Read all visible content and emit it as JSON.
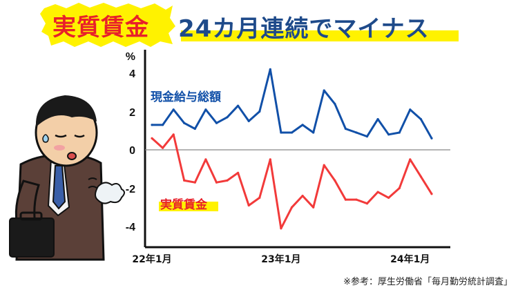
{
  "header": {
    "title_highlight": "実質賃金",
    "title_rest": "24カ月連続でマイナス"
  },
  "footer": {
    "source": "※参考：厚生労働省「毎月勤労統計調査」"
  },
  "colors": {
    "red": "#e8202a",
    "blue": "#1e4a8a",
    "nominal_line": "#1150a8",
    "real_line": "#f23a3a",
    "yellow": "#fff200"
  },
  "chart_data": {
    "type": "line",
    "ylabel": "%",
    "ylim": [
      -5,
      5
    ],
    "yticks": [
      4,
      2,
      0,
      -2,
      -4
    ],
    "x_ticks": [
      {
        "index": 0,
        "label": "22年1月"
      },
      {
        "index": 12,
        "label": "23年1月"
      },
      {
        "index": 24,
        "label": "24年1月"
      }
    ],
    "zero_line": true,
    "series": [
      {
        "name": "現金給与総額",
        "color_key": "nominal_line",
        "values": [
          1.3,
          1.3,
          2.1,
          1.4,
          1.1,
          2.1,
          1.4,
          1.7,
          2.3,
          1.5,
          2.0,
          4.2,
          0.9,
          0.9,
          1.3,
          0.9,
          3.1,
          2.4,
          1.1,
          0.9,
          0.7,
          1.6,
          0.8,
          0.9,
          2.1,
          1.6,
          0.6
        ]
      },
      {
        "name": "実質賃金",
        "color_key": "real_line",
        "values": [
          0.6,
          0.1,
          0.8,
          -1.6,
          -1.7,
          -0.5,
          -1.7,
          -1.6,
          -1.2,
          -2.9,
          -2.5,
          -0.5,
          -4.1,
          -3.0,
          -2.4,
          -3.0,
          -0.8,
          -1.6,
          -2.6,
          -2.6,
          -2.8,
          -2.2,
          -2.5,
          -2.0,
          -0.5,
          -1.4,
          -2.3
        ]
      }
    ]
  }
}
